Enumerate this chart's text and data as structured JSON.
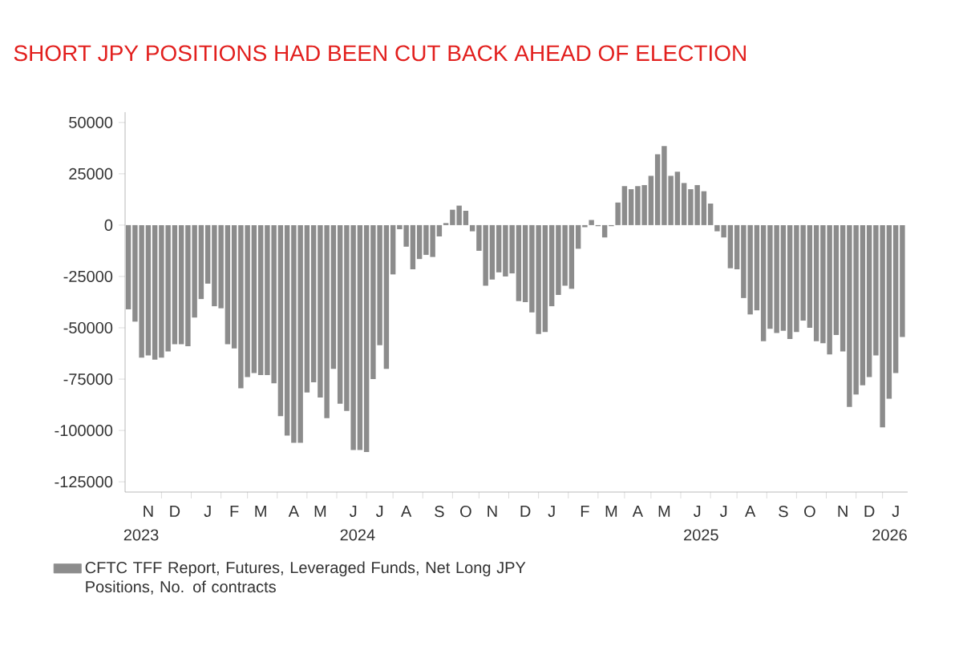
{
  "chart_data": {
    "type": "bar",
    "title": "SHORT JPY POSITIONS HAD BEEN CUT BACK AHEAD OF ELECTION",
    "categories": [
      null,
      null,
      null,
      "N",
      null,
      null,
      null,
      "D",
      null,
      null,
      null,
      null,
      "J",
      null,
      null,
      null,
      "F",
      null,
      null,
      null,
      "M",
      null,
      null,
      null,
      null,
      "A",
      null,
      null,
      null,
      "M",
      null,
      null,
      null,
      null,
      "J",
      null,
      null,
      null,
      "J",
      null,
      null,
      null,
      "A",
      null,
      null,
      null,
      null,
      "S",
      null,
      null,
      null,
      "O",
      null,
      null,
      null,
      "N",
      null,
      null,
      null,
      null,
      "D",
      null,
      null,
      null,
      "J",
      null,
      null,
      null,
      null,
      "F",
      null,
      null,
      null,
      "M",
      null,
      null,
      null,
      "A",
      null,
      null,
      null,
      "M",
      null,
      null,
      null,
      null,
      "J",
      null,
      null,
      null,
      "J",
      null,
      null,
      null,
      "A",
      null,
      null,
      null,
      null,
      "S",
      null,
      null,
      null,
      "O",
      null,
      null,
      null,
      null,
      "N",
      null,
      null,
      null,
      "D",
      null,
      null,
      null,
      "J",
      null
    ],
    "series": [
      {
        "name": "CFTC TFF Report, Futures, Leveraged Funds, Net Long JPY Positions, No. of contracts",
        "color": "#8c8c8c",
        "values": [
          -41000,
          -47000,
          -64500,
          -63500,
          -65500,
          -64500,
          -61500,
          -58000,
          -58000,
          -59000,
          -45000,
          -36000,
          -28500,
          -39500,
          -40500,
          -58000,
          -60000,
          -79500,
          -74000,
          -72000,
          -73000,
          -73000,
          -77000,
          -93000,
          -102500,
          -106000,
          -106000,
          -81500,
          -76500,
          -84000,
          -94000,
          -70000,
          -87000,
          -90500,
          -109500,
          -109500,
          -110500,
          -75000,
          -58500,
          -70000,
          -24000,
          -2000,
          -10500,
          -21500,
          -16500,
          -14500,
          -15500,
          -5500,
          1000,
          7500,
          9500,
          7000,
          -3000,
          -12500,
          -29500,
          -26500,
          -23000,
          -25000,
          -23500,
          -37000,
          -37500,
          -42500,
          -53000,
          -52000,
          -39500,
          -34000,
          -29500,
          -31000,
          -11500,
          -1000,
          2500,
          -500,
          -6000,
          -500,
          11000,
          19000,
          17500,
          19000,
          19500,
          24000,
          34500,
          38500,
          24000,
          26000,
          20500,
          17500,
          19500,
          16500,
          10500,
          -3000,
          -6000,
          -21000,
          -21500,
          -35500,
          -43500,
          -41500,
          -56500,
          -50500,
          -52500,
          -51500,
          -55500,
          -52000,
          -46500,
          -50000,
          -56500,
          -57500,
          -63000,
          -53500,
          -61500,
          -88500,
          -82500,
          -78000,
          -74000,
          -63500,
          -98500,
          -84500,
          -72000,
          -54500
        ]
      }
    ],
    "ylim": [
      -130000,
      55000
    ],
    "yticks": [
      -125000,
      -100000,
      -75000,
      -50000,
      -25000,
      0,
      25000,
      50000
    ],
    "annotations": [
      "2023",
      "2024",
      "2025",
      "2026"
    ],
    "legend": "bottom left"
  }
}
